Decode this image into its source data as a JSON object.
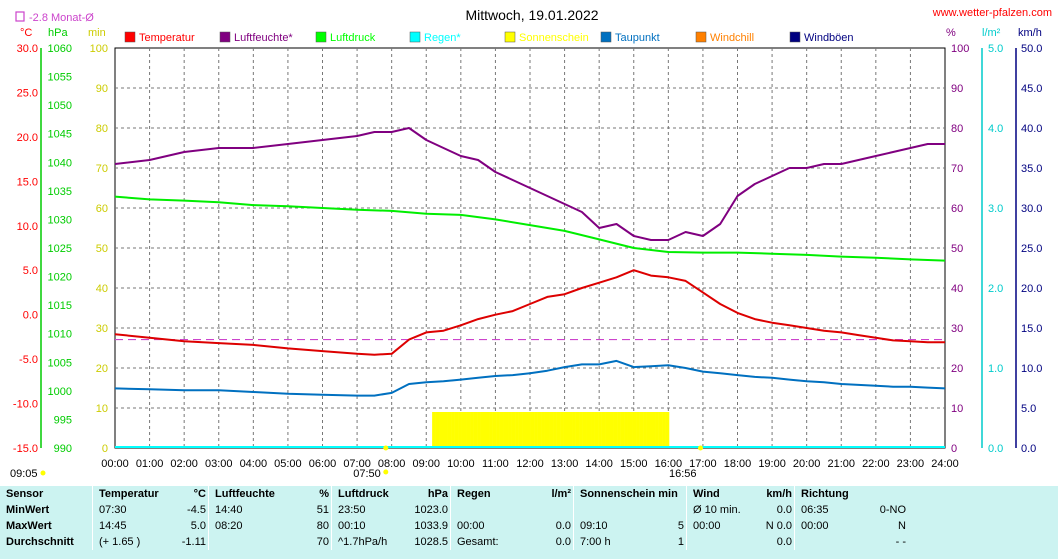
{
  "header": {
    "title": "Mittwoch, 19.01.2022",
    "site": "www.wetter-pfalzen.com",
    "monthly_avg_label": "-2.8 Monat-Ø"
  },
  "chart_data": {
    "type": "line",
    "title": "Mittwoch, 19.01.2022",
    "x_ticks": [
      "00:00",
      "01:00",
      "02:00",
      "03:00",
      "04:00",
      "05:00",
      "06:00",
      "07:00",
      "08:00",
      "09:00",
      "10:00",
      "11:00",
      "12:00",
      "13:00",
      "14:00",
      "15:00",
      "16:00",
      "17:00",
      "18:00",
      "19:00",
      "20:00",
      "21:00",
      "22:00",
      "23:00",
      "24:00"
    ],
    "x_extra_labels": [
      {
        "text": "09:05",
        "hour": 0.0
      },
      {
        "text": "07:50",
        "hour": 7.83
      },
      {
        "text": "16:56",
        "hour": 16.93
      }
    ],
    "axes": {
      "temperature": {
        "unit": "°C",
        "range": [
          -15,
          30
        ],
        "ticks": [
          "30.0",
          "25.0",
          "20.0",
          "15.0",
          "10.0",
          "5.0",
          "0.0",
          "-5.0",
          "-10.0",
          "-15.0"
        ],
        "color": "#ff0000"
      },
      "pressure": {
        "unit": "hPa",
        "range": [
          990,
          1060
        ],
        "ticks": [
          "1060",
          "1055",
          "1050",
          "1045",
          "1040",
          "1035",
          "1030",
          "1025",
          "1020",
          "1015",
          "1010",
          "1005",
          "1000",
          "995",
          "990"
        ],
        "color": "#00cc00"
      },
      "sunshine": {
        "unit": "min",
        "range": [
          0,
          100
        ],
        "ticks": [
          "100",
          "90",
          "80",
          "70",
          "60",
          "50",
          "40",
          "30",
          "20",
          "10",
          "0"
        ],
        "color": "#cccc00"
      },
      "humidity": {
        "unit": "%",
        "range": [
          0,
          100
        ],
        "ticks": [
          "100",
          "90",
          "80",
          "70",
          "60",
          "50",
          "40",
          "30",
          "20",
          "10",
          "0"
        ],
        "color": "#800080"
      },
      "rain": {
        "unit": "l/m²",
        "range": [
          0,
          5
        ],
        "ticks": [
          "5.0",
          "4.0",
          "3.0",
          "2.0",
          "1.0",
          "0.0"
        ],
        "color": "#00cccc"
      },
      "wind": {
        "unit": "km/h",
        "range": [
          0,
          50
        ],
        "ticks": [
          "50.0",
          "45.0",
          "40.0",
          "35.0",
          "30.0",
          "25.0",
          "20.0",
          "15.0",
          "10.0",
          "5.0",
          "0.0"
        ],
        "color": "#000080"
      }
    },
    "legend": [
      {
        "name": "Temperatur",
        "color": "#ff0000"
      },
      {
        "name": "Luftfeuchte*",
        "color": "#800080"
      },
      {
        "name": "Luftdruck",
        "color": "#00ff00"
      },
      {
        "name": "Regen*",
        "color": "#00ffff"
      },
      {
        "name": "Sonnenschein",
        "color": "#ffff00"
      },
      {
        "name": "Taupunkt",
        "color": "#0070c0"
      },
      {
        "name": "Windchill",
        "color": "#ff8000"
      },
      {
        "name": "Windböen",
        "color": "#000080"
      }
    ],
    "monthly_avg_temperature": -2.8,
    "series": [
      {
        "name": "Luftfeuchte*",
        "axis": "humidity",
        "color": "#800080",
        "x": [
          0,
          1,
          2,
          3,
          4,
          5,
          6,
          7,
          7.5,
          8,
          8.5,
          9,
          9.5,
          10,
          10.5,
          11,
          11.5,
          12,
          12.5,
          13,
          13.5,
          14,
          14.5,
          15,
          15.5,
          16,
          16.5,
          17,
          17.5,
          18,
          18.5,
          19,
          19.5,
          20,
          20.5,
          21,
          21.5,
          22,
          22.5,
          23,
          23.5,
          24
        ],
        "y": [
          71,
          72,
          74,
          75,
          75,
          76,
          77,
          78,
          79,
          79,
          80,
          77,
          75,
          73,
          72,
          69,
          67,
          65,
          63,
          61,
          59,
          55,
          56,
          53,
          52,
          52,
          54,
          53,
          56,
          63,
          66,
          68,
          70,
          70,
          71,
          71,
          72,
          73,
          74,
          75,
          76,
          76
        ]
      },
      {
        "name": "Luftdruck",
        "axis": "pressure",
        "color": "#00ee00",
        "x": [
          0,
          1,
          2,
          3,
          4,
          5,
          6,
          7,
          8,
          9,
          10,
          11,
          12,
          13,
          14,
          15,
          16,
          17,
          18,
          19,
          20,
          21,
          22,
          23,
          24
        ],
        "y": [
          1034,
          1033.5,
          1033.3,
          1033.0,
          1032.5,
          1032.3,
          1032.0,
          1031.7,
          1031.5,
          1031.0,
          1030.8,
          1030.0,
          1029.0,
          1028.0,
          1026.5,
          1025.0,
          1024.3,
          1024.2,
          1024.2,
          1024.0,
          1023.8,
          1023.5,
          1023.3,
          1023.0,
          1022.8
        ]
      },
      {
        "name": "Temperatur",
        "axis": "temperature",
        "color": "#dd0000",
        "x": [
          0,
          1,
          2,
          3,
          4,
          5,
          6,
          7,
          7.5,
          8,
          8.5,
          9,
          9.5,
          10,
          10.5,
          11,
          11.5,
          12,
          12.5,
          13,
          13.5,
          14,
          14.5,
          15,
          15.5,
          16,
          16.5,
          17,
          17.5,
          18,
          18.5,
          19,
          19.5,
          20,
          20.5,
          21,
          21.5,
          22,
          22.5,
          23,
          23.5,
          24
        ],
        "y": [
          -2.2,
          -2.6,
          -3.0,
          -3.2,
          -3.4,
          -3.8,
          -4.1,
          -4.4,
          -4.5,
          -4.4,
          -2.8,
          -2.0,
          -1.8,
          -1.2,
          -0.5,
          0.0,
          0.4,
          1.2,
          2.0,
          2.3,
          3.0,
          3.6,
          4.2,
          5.0,
          4.4,
          4.2,
          3.8,
          2.5,
          1.2,
          0.2,
          -0.5,
          -0.9,
          -1.2,
          -1.5,
          -1.8,
          -2.0,
          -2.3,
          -2.6,
          -2.9,
          -3.0,
          -3.1,
          -3.1
        ]
      },
      {
        "name": "Taupunkt",
        "axis": "temperature",
        "color": "#0070c0",
        "x": [
          0,
          1,
          2,
          3,
          4,
          5,
          6,
          7,
          7.5,
          8,
          8.5,
          9,
          9.5,
          10,
          10.5,
          11,
          11.5,
          12,
          12.5,
          13,
          13.5,
          14,
          14.5,
          15,
          15.5,
          16,
          16.5,
          17,
          17.5,
          18,
          18.5,
          19,
          19.5,
          20,
          20.5,
          21,
          21.5,
          22,
          22.5,
          23,
          23.5,
          24
        ],
        "y": [
          -8.3,
          -8.4,
          -8.5,
          -8.5,
          -8.7,
          -8.9,
          -9.0,
          -9.1,
          -9.1,
          -8.8,
          -7.8,
          -7.6,
          -7.5,
          -7.3,
          -7.1,
          -6.9,
          -6.8,
          -6.6,
          -6.3,
          -5.9,
          -5.6,
          -5.6,
          -5.2,
          -5.9,
          -5.8,
          -5.7,
          -6.0,
          -6.4,
          -6.6,
          -6.8,
          -7.0,
          -7.1,
          -7.3,
          -7.5,
          -7.6,
          -7.8,
          -7.9,
          -8.0,
          -8.1,
          -8.1,
          -8.2,
          -8.3
        ]
      }
    ],
    "sunshine_bars": {
      "start": 9.17,
      "end": 16.0,
      "value": 5,
      "axis": "sunshine",
      "color": "#ffff00"
    },
    "sunrise": 7.83,
    "sunset": 16.93
  },
  "panel": {
    "headers": {
      "sensor": "Sensor",
      "temperature": "Temperatur",
      "temp_unit": "°C",
      "humidity": "Luftfeuchte",
      "hum_unit": "%",
      "pressure": "Luftdruck",
      "press_unit": "hPa",
      "rain": "Regen",
      "rain_unit": "l/m²",
      "sun": "Sonnenschein min",
      "wind": "Wind",
      "wind_unit": "km/h",
      "direction": "Richtung"
    },
    "rows": [
      {
        "label": "MinWert",
        "t_time": "07:30",
        "t_val": "-4.5",
        "h_time": "14:40",
        "h_val": "51",
        "p_time": "23:50",
        "p_val": "1023.0",
        "r_time": "",
        "r_val": "",
        "s_time": "",
        "s_val": "",
        "w_time": "Ø 10 min.",
        "w_val": "0.0",
        "d_time": "06:35",
        "d_val": "0-NO"
      },
      {
        "label": "MaxWert",
        "t_time": "14:45",
        "t_val": "5.0",
        "h_time": "08:20",
        "h_val": "80",
        "p_time": "00:10",
        "p_val": "1033.9",
        "r_time": "00:00",
        "r_val": "0.0",
        "s_time": "09:10",
        "s_val": "5",
        "w_time": "00:00",
        "w_val": "N 0.0",
        "d_time": "00:00",
        "d_val": "N"
      },
      {
        "label": "Durchschnitt",
        "t_time": "(+ 1.65 )",
        "t_val": "-1.11",
        "h_time": "",
        "h_val": "70",
        "p_time": "^1.7hPa/h",
        "p_val": "1028.5",
        "r_time": "Gesamt:",
        "r_val": "0.0",
        "s_time": "7:00 h",
        "s_val": "1",
        "w_time": "",
        "w_val": "0.0",
        "d_time": "",
        "d_val": "- -"
      }
    ]
  }
}
